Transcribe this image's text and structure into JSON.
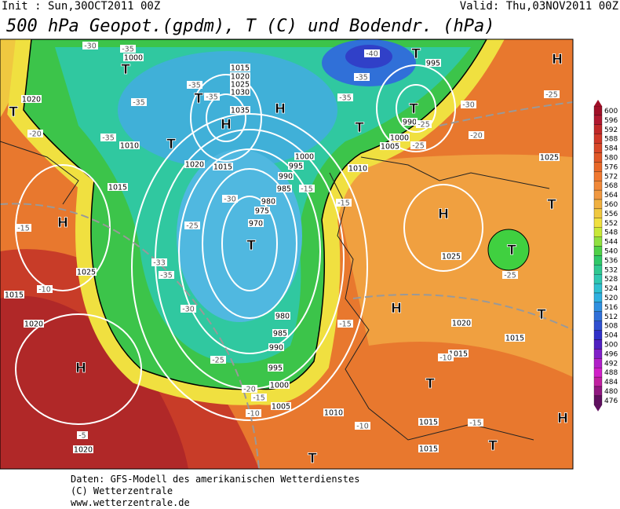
{
  "header": {
    "init": "Init : Sun,30OCT2011 00Z",
    "valid": "Valid: Thu,03NOV2011 00Z",
    "title": "500 hPa Geopot.(gpdm), T (C) und Bodendr. (hPa)"
  },
  "map": {
    "labels": [
      "T",
      "T",
      "T",
      "T",
      "T",
      "T",
      "T",
      "T",
      "T",
      "T",
      "T",
      "T",
      "T",
      "T",
      "H",
      "H",
      "H",
      "H",
      "H",
      "H",
      "H",
      "H",
      "1000",
      "1015",
      "1020",
      "1025",
      "1030",
      "1035",
      "1020",
      "1010",
      "1015",
      "1020",
      "1015",
      "995",
      "990",
      "1000",
      "1005",
      "1000",
      "995",
      "990",
      "985",
      "980",
      "975",
      "970",
      "1025",
      "1015",
      "1020",
      "980",
      "985",
      "990",
      "995",
      "1000",
      "1005",
      "1010",
      "1015",
      "1015",
      "1015",
      "1015",
      "1020",
      "1025",
      "1010",
      "1025",
      "1020",
      "-30",
      "-35",
      "-35",
      "-35",
      "-35",
      "-35",
      "-40",
      "-35",
      "-35",
      "-30",
      "-25",
      "-25",
      "-25",
      "-20",
      "-20",
      "-15",
      "-10",
      "-25",
      "-30",
      "-35",
      "-33",
      "-30",
      "-25",
      "-20",
      "-15",
      "-10",
      "-15",
      "-15",
      "-15",
      "-10",
      "-10",
      "-15",
      "-25",
      "-5"
    ]
  },
  "legend": {
    "values": [
      600,
      596,
      592,
      588,
      584,
      580,
      576,
      572,
      568,
      564,
      560,
      556,
      552,
      548,
      544,
      540,
      536,
      532,
      528,
      524,
      520,
      516,
      512,
      508,
      504,
      500,
      496,
      492,
      488,
      484,
      480,
      476
    ],
    "colors": [
      "#a01028",
      "#b01830",
      "#c02828",
      "#d03828",
      "#d84828",
      "#e05828",
      "#e86828",
      "#f07830",
      "#f08838",
      "#f09840",
      "#f0b040",
      "#f0c840",
      "#f0e040",
      "#c8e838",
      "#90e040",
      "#50d048",
      "#30c868",
      "#30c890",
      "#30c8b0",
      "#30c0d0",
      "#30b0e0",
      "#3090e0",
      "#3070d8",
      "#3050d0",
      "#3030c8",
      "#5020c0",
      "#8020c8",
      "#b020c8",
      "#d020c8",
      "#c020a0",
      "#901880",
      "#601060"
    ]
  },
  "footer": {
    "lines": [
      "Daten: GFS-Modell des amerikanischen Wetterdienstes",
      "(C) Wetterzentrale",
      "www.wetterzentrale.de"
    ]
  }
}
